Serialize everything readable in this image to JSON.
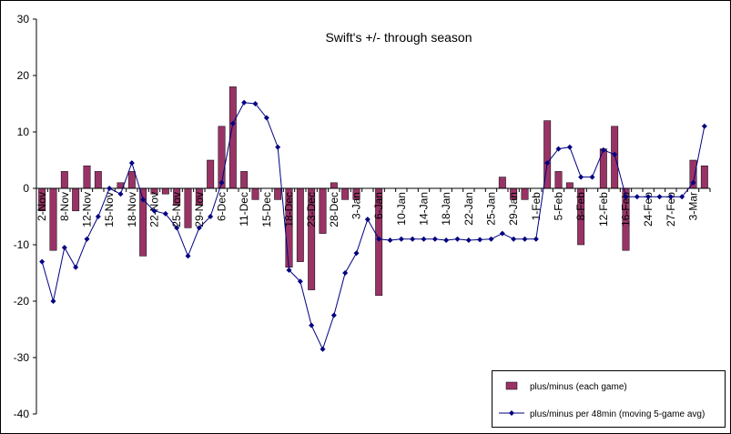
{
  "chart_data": {
    "type": "bar",
    "title": "Swift's +/- through season",
    "categories": [
      "2-Nov",
      null,
      "8-Nov",
      null,
      "12-Nov",
      null,
      "15-Nov",
      null,
      "18-Nov",
      null,
      "22-Nov",
      null,
      "25-Nov",
      null,
      "29-Nov",
      null,
      "6-Dec",
      null,
      "11-Dec",
      null,
      "15-Dec",
      null,
      "18-Dec",
      null,
      "23-Dec",
      null,
      "28-Dec",
      null,
      "3-Jan",
      null,
      "6-Jan",
      null,
      "10-Jan",
      null,
      "14-Jan",
      null,
      "18-Jan",
      null,
      "22-Jan",
      null,
      "25-Jan",
      null,
      "29-Jan",
      null,
      "1-Feb",
      null,
      "5-Feb",
      null,
      "8-Feb",
      null,
      "12-Feb",
      null,
      "16-Feb",
      null,
      "24-Feb",
      null,
      "27-Feb",
      null,
      "3-Mar",
      null
    ],
    "series": [
      {
        "name": "plus/minus (each game)",
        "type": "bar",
        "color": "#993366",
        "values": [
          -4,
          -11,
          3,
          -4,
          4,
          3,
          0,
          1,
          3,
          -12,
          -1,
          -1,
          -3,
          -7,
          -3,
          5,
          11,
          18,
          3,
          -2,
          0,
          -2,
          -14,
          -13,
          -18,
          -8,
          1,
          -2,
          -2,
          0,
          -19,
          0,
          0,
          0,
          0,
          0,
          0,
          0,
          0,
          0,
          0,
          2,
          -2,
          -2,
          0,
          12,
          3,
          1,
          -10,
          0,
          7,
          11,
          -11,
          0,
          0,
          0,
          0,
          0,
          5,
          4
        ]
      },
      {
        "name": "plus/minus per 48min (moving 5-game avg)",
        "type": "line",
        "color": "#000080",
        "values": [
          -13,
          -20,
          -10.5,
          -14,
          -9,
          -5,
          0,
          -1,
          4.5,
          -2,
          -4,
          -4.5,
          -7,
          -12,
          -7,
          -5,
          1,
          11.5,
          15.2,
          15,
          12.5,
          7.3,
          -14.5,
          -16.5,
          -24.3,
          -28.5,
          -22.5,
          -15,
          -11.5,
          -5.5,
          -9,
          -9.2,
          -9,
          -9,
          -9,
          -9,
          -9.2,
          -9,
          -9.2,
          -9.1,
          -9,
          -8,
          -9,
          -9,
          -9,
          4.5,
          7,
          7.3,
          2,
          2,
          6.8,
          6,
          -1.5,
          -1.5,
          -1.5,
          -1.5,
          -1.5,
          -1.5,
          1,
          11
        ]
      }
    ],
    "ylim": [
      -40,
      30
    ],
    "yticks": [
      -40,
      -30,
      -20,
      -10,
      0,
      10,
      20,
      30
    ],
    "grid": false,
    "legend": "bottom-right"
  }
}
